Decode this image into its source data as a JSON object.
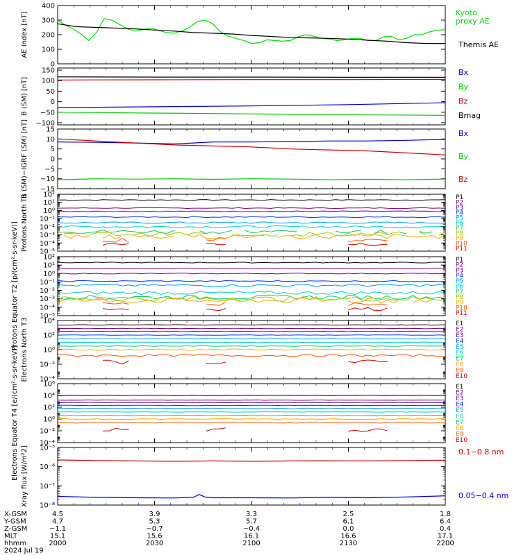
{
  "chart_data": [
    {
      "type": "line",
      "ylabel": "AE Index [nT]",
      "ylim": [
        0,
        400
      ],
      "yticks": [
        0,
        100,
        200,
        300,
        400
      ],
      "ytick_labels": [
        "0",
        "100",
        "200",
        "300",
        "400"
      ],
      "series": [
        {
          "name": "Kyoto proxy AE",
          "color": "#00dd00",
          "x": [
            2000,
            2004,
            2008,
            2012,
            2016,
            2020,
            2024,
            2028,
            2032,
            2036,
            2040,
            2044,
            2048,
            2052,
            2056,
            2060,
            2064,
            2068,
            2072,
            2076,
            2080,
            2084,
            2088,
            2092,
            2096,
            2100,
            2104,
            2108,
            2112,
            2116,
            2120,
            2124,
            2128,
            2132,
            2136,
            2140,
            2144,
            2148,
            2152,
            2156,
            2160,
            2164,
            2168,
            2172,
            2176,
            2180,
            2184,
            2188,
            2192,
            2196,
            2200
          ],
          "y": [
            300,
            265,
            240,
            205,
            160,
            215,
            310,
            300,
            270,
            240,
            225,
            235,
            245,
            230,
            215,
            210,
            225,
            250,
            290,
            300,
            275,
            220,
            190,
            175,
            160,
            140,
            145,
            165,
            160,
            155,
            160,
            185,
            200,
            190,
            175,
            170,
            160,
            165,
            175,
            175,
            160,
            160,
            185,
            190,
            165,
            175,
            200,
            200,
            220,
            230,
            235
          ]
        },
        {
          "name": "Themis AE",
          "color": "#000000",
          "x": [
            2000,
            2010,
            2020,
            2030,
            2040,
            2050,
            2060,
            2070,
            2080,
            2090,
            2100,
            2110,
            2120,
            2130,
            2140,
            2150,
            2160,
            2170,
            2180,
            2190,
            2200
          ],
          "y": [
            275,
            255,
            250,
            245,
            240,
            232,
            225,
            215,
            210,
            205,
            195,
            188,
            180,
            178,
            175,
            170,
            162,
            155,
            145,
            140,
            140
          ]
        }
      ]
    },
    {
      "type": "line",
      "ylabel": "B (SM) [nT]",
      "ylim": [
        -110,
        160
      ],
      "yticks": [
        -100,
        -50,
        0,
        50,
        100,
        150
      ],
      "ytick_labels": [
        "−100",
        "−50",
        "0",
        "50",
        "100",
        "150"
      ],
      "series": [
        {
          "name": "Bx",
          "color": "#0000cc",
          "x": [
            2000,
            2050,
            2100,
            2150,
            2200
          ],
          "y": [
            -28,
            -24,
            -20,
            -14,
            -5
          ]
        },
        {
          "name": "By",
          "color": "#00cc00",
          "x": [
            2000,
            2050,
            2100,
            2150,
            2200
          ],
          "y": [
            -50,
            -54,
            -58,
            -62,
            -65
          ]
        },
        {
          "name": "Bz",
          "color": "#cc0000",
          "x": [
            2000,
            2050,
            2100,
            2150,
            2200
          ],
          "y": [
            103,
            104,
            105,
            105,
            106
          ]
        },
        {
          "name": "Bmag",
          "color": "#000000",
          "x": [
            2000,
            2050,
            2100,
            2150,
            2200
          ],
          "y": [
            118,
            117,
            117,
            116,
            116
          ]
        }
      ]
    },
    {
      "type": "line",
      "ylabel": "B (SM)−IGRF (SM) [nT]",
      "ylim": [
        -15,
        15
      ],
      "yticks": [
        -15,
        -10,
        -5,
        0,
        5,
        10,
        15
      ],
      "ytick_labels": [
        "−15",
        "−10",
        "−5",
        "0",
        "5",
        "10",
        "15"
      ],
      "series": [
        {
          "name": "Bx",
          "color": "#0000cc",
          "x": [
            2000,
            2020,
            2040,
            2060,
            2070,
            2080,
            2100,
            2120,
            2140,
            2160,
            2180,
            2200
          ],
          "y": [
            8.5,
            8.3,
            8.0,
            7.5,
            8.0,
            8.5,
            8.5,
            8.7,
            9.0,
            9.0,
            9.3,
            9.8
          ]
        },
        {
          "name": "By",
          "color": "#00cc00",
          "x": [
            2000,
            2020,
            2040,
            2060,
            2080,
            2100,
            2120,
            2140,
            2160,
            2180,
            2200
          ],
          "y": [
            -10.5,
            -10,
            -10.2,
            -10,
            -10.3,
            -10,
            -10.2,
            -10.5,
            -10.3,
            -10.5,
            -10.2
          ]
        },
        {
          "name": "Bz",
          "color": "#cc0000",
          "x": [
            2000,
            2020,
            2040,
            2060,
            2080,
            2100,
            2120,
            2140,
            2160,
            2180,
            2200
          ],
          "y": [
            10,
            9,
            8,
            7,
            6.5,
            6,
            5,
            4.5,
            4,
            3,
            2
          ]
        }
      ]
    },
    {
      "type": "line",
      "ylabel": "Protons North T1",
      "ylog": true,
      "ylim": [
        -5,
        2
      ],
      "yticks": [
        -5,
        -4,
        -3,
        -2,
        -1,
        0,
        1,
        2
      ],
      "ytick_labels": [
        "10⁻⁵",
        "10⁻⁴",
        "10⁻³",
        "10⁻²",
        "10⁻¹",
        "10⁰",
        "10¹",
        "10²"
      ],
      "series": [
        {
          "name": "P1",
          "color": "#000000",
          "base": 1.3,
          "noise": 0.05
        },
        {
          "name": "P2",
          "color": "#7a0077",
          "base": 0.3,
          "noise": 0.05
        },
        {
          "name": "P3",
          "color": "#4a00aa",
          "base": -0.1,
          "noise": 0.05
        },
        {
          "name": "P4",
          "color": "#0033ff",
          "base": -0.8,
          "noise": 0.07
        },
        {
          "name": "P5",
          "color": "#0099ff",
          "base": -1.5,
          "noise": 0.1
        },
        {
          "name": "P6",
          "color": "#00cccc",
          "base": -2.0,
          "noise": 0.12
        },
        {
          "name": "P7",
          "color": "#00cc66",
          "base": -2.6,
          "noise": 0.25,
          "gaps": true
        },
        {
          "name": "P8",
          "color": "#99cc00",
          "base": -2.9,
          "noise": 0.3,
          "gaps": true
        },
        {
          "name": "P9",
          "color": "#ffaa00",
          "base": -3.2,
          "noise": 0.3,
          "gaps": true
        },
        {
          "name": "P10",
          "color": "#ff5500",
          "base": -3.6,
          "noise": 0.3,
          "sparse": true
        },
        {
          "name": "P11",
          "color": "#cc0000",
          "base": -4.1,
          "noise": 0.2,
          "sparse": true
        }
      ]
    },
    {
      "type": "line",
      "ylabel": "Protons Equator T2 [p/(cm²-s-sr-keV)]",
      "ylog": true,
      "ylim": [
        -5,
        2
      ],
      "yticks": [
        -5,
        -4,
        -3,
        -2,
        -1,
        0,
        1,
        2
      ],
      "ytick_labels": [
        "10⁻⁵",
        "10⁻⁴",
        "10⁻³",
        "10⁻²",
        "10⁻¹",
        "10⁰",
        "10¹",
        "10²"
      ],
      "series": [
        {
          "name": "P1",
          "color": "#000000",
          "base": 1.3,
          "noise": 0.05
        },
        {
          "name": "P2",
          "color": "#7a0077",
          "base": 0.6,
          "noise": 0.05
        },
        {
          "name": "P3",
          "color": "#4a00aa",
          "base": 0.0,
          "noise": 0.05
        },
        {
          "name": "P4",
          "color": "#0033ff",
          "base": -0.9,
          "noise": 0.07
        },
        {
          "name": "P5",
          "color": "#0099ff",
          "base": -1.4,
          "noise": 0.15
        },
        {
          "name": "P6",
          "color": "#00cccc",
          "base": -2.3,
          "noise": 0.2
        },
        {
          "name": "P7",
          "color": "#00cc66",
          "base": -2.8,
          "noise": 0.25
        },
        {
          "name": "P8",
          "color": "#99cc00",
          "base": -3.0,
          "noise": 0.3
        },
        {
          "name": "P9",
          "color": "#ffaa00",
          "base": -3.2,
          "noise": 0.3,
          "gaps": true
        },
        {
          "name": "P10",
          "color": "#ff5500",
          "base": -3.6,
          "noise": 0.2,
          "sparse": true
        },
        {
          "name": "P11",
          "color": "#cc0000",
          "base": -4.2,
          "noise": 0.2,
          "sparse": true
        }
      ]
    },
    {
      "type": "line",
      "ylabel": "Electrons North T3",
      "ylog": true,
      "ylim": [
        -4,
        4
      ],
      "yticks": [
        -4,
        -2,
        0,
        2,
        4
      ],
      "ytick_labels": [
        "10⁻⁴",
        "10⁻²",
        "10⁰",
        "10²",
        "10⁴"
      ],
      "series": [
        {
          "name": "E1",
          "color": "#000000",
          "base": 3.4,
          "noise": 0.03
        },
        {
          "name": "E2",
          "color": "#7a0077",
          "base": 2.9,
          "noise": 0.03
        },
        {
          "name": "E3",
          "color": "#4a00aa",
          "base": 2.5,
          "noise": 0.03
        },
        {
          "name": "E4",
          "color": "#0033ff",
          "base": 2.0,
          "noise": 0.03
        },
        {
          "name": "E5",
          "color": "#0099ff",
          "base": 1.5,
          "noise": 0.04
        },
        {
          "name": "E6",
          "color": "#00cccc",
          "base": 1.0,
          "noise": 0.04
        },
        {
          "name": "E7",
          "color": "#00cc66",
          "base": 0.5,
          "noise": 0.05
        },
        {
          "name": "E8",
          "color": "#ffaa00",
          "base": 0.0,
          "noise": 0.1
        },
        {
          "name": "E9",
          "color": "#ff5500",
          "base": -0.8,
          "noise": 0.15
        },
        {
          "name": "E10",
          "color": "#cc0000",
          "base": -1.7,
          "noise": 0.3,
          "sparse": true
        }
      ]
    },
    {
      "type": "line",
      "ylabel": "Electrons Equator T4 [e/(cm²-s-sr-keV)]",
      "ylog": true,
      "ylim": [
        -4,
        6
      ],
      "yticks": [
        -4,
        -2,
        0,
        2,
        4,
        6
      ],
      "ytick_labels": [
        "10⁻⁴",
        "10⁻²",
        "10⁰",
        "10²",
        "10⁴",
        "10⁶"
      ],
      "series": [
        {
          "name": "E1",
          "color": "#000000",
          "base": 4.0,
          "noise": 0.03
        },
        {
          "name": "E2",
          "color": "#7a0077",
          "base": 3.2,
          "noise": 0.03
        },
        {
          "name": "E3",
          "color": "#4a00aa",
          "base": 2.8,
          "noise": 0.03
        },
        {
          "name": "E4",
          "color": "#0033ff",
          "base": 2.3,
          "noise": 0.03
        },
        {
          "name": "E5",
          "color": "#0099ff",
          "base": 1.8,
          "noise": 0.04
        },
        {
          "name": "E6",
          "color": "#00cccc",
          "base": 1.2,
          "noise": 0.04
        },
        {
          "name": "E7",
          "color": "#00cc66",
          "base": 0.6,
          "noise": 0.05
        },
        {
          "name": "E8",
          "color": "#ffaa00",
          "base": 0.0,
          "noise": 0.08
        },
        {
          "name": "E9",
          "color": "#ff5500",
          "base": -0.6,
          "noise": 0.1
        },
        {
          "name": "E10",
          "color": "#cc0000",
          "base": -1.8,
          "noise": 0.3,
          "sparse": true
        }
      ]
    },
    {
      "type": "line",
      "ylabel": "Xray flux [W/m²2]",
      "ylog": true,
      "ylim": [
        -8,
        -5
      ],
      "yticks": [
        -8,
        -7,
        -6,
        -5
      ],
      "ytick_labels": [
        "10⁻⁸",
        "10⁻⁷",
        "10⁻⁶",
        "10⁻⁵"
      ],
      "series": [
        {
          "name": "0.1−0.8 nm",
          "color": "#cc0000",
          "x": [
            2000,
            2020,
            2040,
            2060,
            2080,
            2100,
            2120,
            2140,
            2160,
            2180,
            2200
          ],
          "y": [
            -5.65,
            -5.68,
            -5.7,
            -5.72,
            -5.7,
            -5.72,
            -5.7,
            -5.69,
            -5.7,
            -5.68,
            -5.66
          ]
        },
        {
          "name": "0.05−0.4 nm",
          "color": "#0000cc",
          "x": [
            2000,
            2020,
            2040,
            2060,
            2070,
            2073,
            2076,
            2080,
            2100,
            2120,
            2140,
            2160,
            2180,
            2200
          ],
          "y": [
            -7.55,
            -7.6,
            -7.62,
            -7.63,
            -7.6,
            -7.45,
            -7.58,
            -7.62,
            -7.62,
            -7.63,
            -7.6,
            -7.62,
            -7.58,
            -7.52
          ]
        }
      ]
    }
  ],
  "xaxis": {
    "x_range": [
      2000,
      2200
    ],
    "tick_hhmm": [
      "2000",
      "2030",
      "2100",
      "2130",
      "2200"
    ],
    "rows": [
      {
        "label": "X-GSM",
        "values": [
          "4.5",
          "3.9",
          "3.3",
          "2.5",
          "1.8"
        ]
      },
      {
        "label": "Y-GSM",
        "values": [
          "4.7",
          "5.3",
          "5.7",
          "6.1",
          "6.4"
        ]
      },
      {
        "label": "Z-GSM",
        "values": [
          "−1.1",
          "−0.7",
          "−0.4",
          "0.0",
          "0.4"
        ]
      },
      {
        "label": "MLT",
        "values": [
          "15.1",
          "15.6",
          "16.1",
          "16.6",
          "17.1"
        ]
      },
      {
        "label": "hhmm",
        "values": [
          "2000",
          "2030",
          "2100",
          "2130",
          "2200"
        ]
      }
    ],
    "date": "2024 Jul 19"
  },
  "legend_lines": [
    [
      "Kyoto",
      "proxy AE"
    ]
  ]
}
